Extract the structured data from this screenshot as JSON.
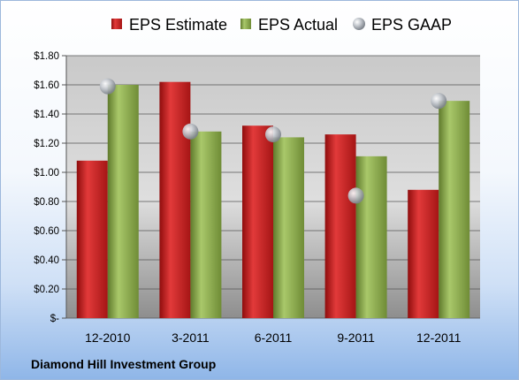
{
  "chart_data": {
    "type": "bar",
    "categories": [
      "12-2010",
      "3-2011",
      "6-2011",
      "9-2011",
      "12-2011"
    ],
    "series": [
      {
        "name": "EPS Estimate",
        "values": [
          1.08,
          1.62,
          1.32,
          1.26,
          0.88
        ],
        "color": "#c81e1e"
      },
      {
        "name": "EPS Actual",
        "values": [
          1.6,
          1.28,
          1.24,
          1.11,
          1.49
        ],
        "color": "#8aa84a"
      },
      {
        "name": "EPS GAAP",
        "values": [
          1.59,
          1.28,
          1.26,
          0.84,
          1.49
        ],
        "color": "#a7acb4",
        "marker": "sphere"
      }
    ],
    "ylim": [
      0,
      1.8
    ],
    "yticks": [
      0,
      0.2,
      0.4,
      0.6,
      0.8,
      1.0,
      1.2,
      1.4,
      1.6,
      1.8
    ],
    "ytick_labels": [
      "$-",
      "$0.20",
      "$0.40",
      "$0.60",
      "$0.80",
      "$1.00",
      "$1.20",
      "$1.40",
      "$1.60",
      "$1.80"
    ],
    "legend_position": "top",
    "grid": true
  },
  "footer": {
    "company": "Diamond Hill Investment Group"
  }
}
